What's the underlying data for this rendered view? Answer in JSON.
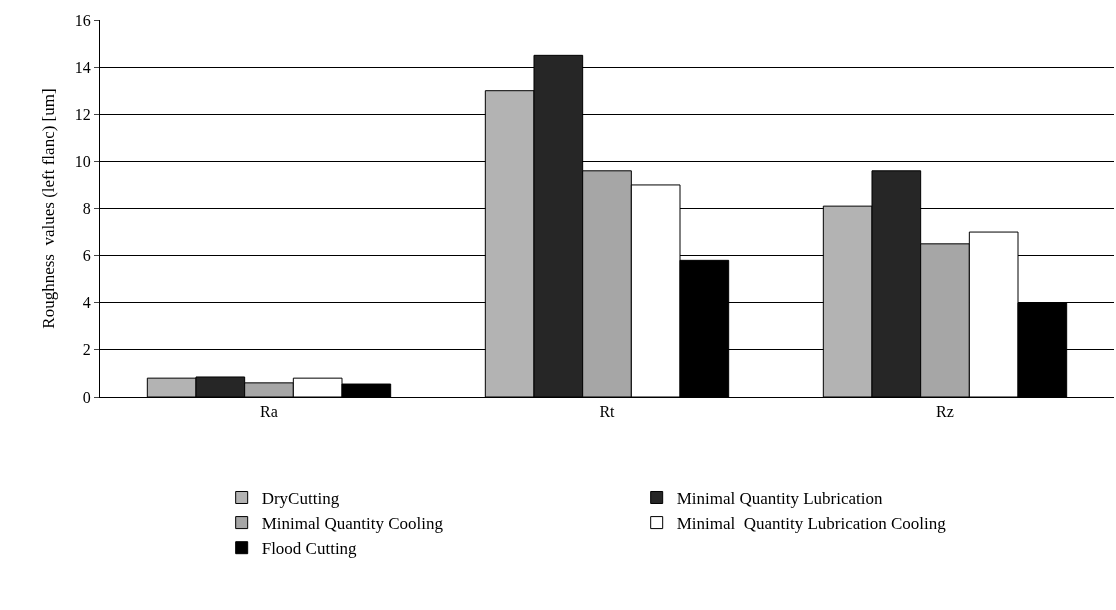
{
  "chart_data": {
    "type": "bar",
    "ylabel": "Roughness  values (left flanc) [um]",
    "categories": [
      "Ra",
      "Rt",
      "Rz"
    ],
    "series": [
      {
        "name": "DryCutting",
        "color": "#b3b3b3",
        "values": [
          0.8,
          13.0,
          8.1
        ]
      },
      {
        "name": "Minimal Quantity Lubrication",
        "color": "#262626",
        "values": [
          0.85,
          14.5,
          9.6
        ]
      },
      {
        "name": "Minimal Quantity Cooling",
        "color": "#a6a6a6",
        "values": [
          0.6,
          9.6,
          6.5
        ]
      },
      {
        "name": "Minimal  Quantity Lubrication Cooling",
        "color": "#ffffff",
        "values": [
          0.8,
          9.0,
          7.0
        ]
      },
      {
        "name": "Flood Cutting",
        "color": "#000000",
        "values": [
          0.55,
          5.8,
          4.0
        ]
      }
    ],
    "ylim": [
      0,
      16
    ],
    "yticks": [
      0,
      2,
      4,
      6,
      8,
      10,
      12,
      14,
      16
    ],
    "grid": "y",
    "legend": "bottom"
  }
}
